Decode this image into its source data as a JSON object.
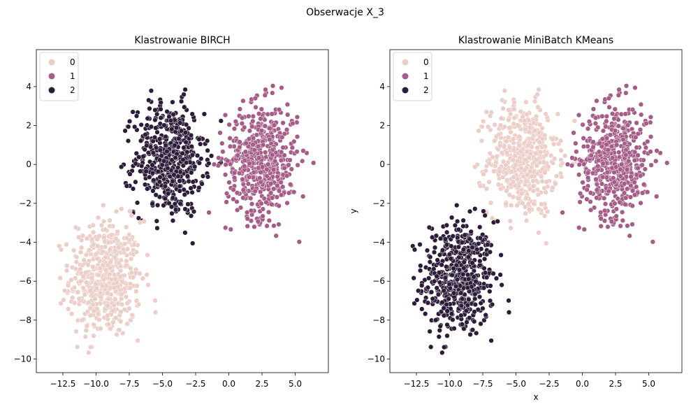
{
  "chart_data": {
    "suptitle": "Obserwacje X_3",
    "xlabel": "x",
    "ylabel": "y",
    "xlim": [
      -14.5,
      7.5
    ],
    "ylim": [
      -10.7,
      5.9
    ],
    "xticks": [
      -12.5,
      -10.0,
      -7.5,
      -5.0,
      -2.5,
      0.0,
      2.5,
      5.0
    ],
    "xtick_labels": [
      "−12.5",
      "−10.0",
      "−7.5",
      "−5.0",
      "−2.5",
      "0.0",
      "2.5",
      "5.0"
    ],
    "yticks": [
      4,
      2,
      0,
      -2,
      -4,
      -6,
      -8,
      -10
    ],
    "ytick_labels": [
      "4",
      "2",
      "0",
      "−2",
      "−4",
      "−6",
      "−8",
      "−10"
    ],
    "palette": [
      "#ebcec7",
      "#a55d88",
      "#2c1c38"
    ],
    "legend": {
      "labels": [
        "0",
        "1",
        "2"
      ],
      "loc": "upper left"
    },
    "source_blobs": [
      {
        "name": "lower-left",
        "center": [
          -9.3,
          -5.9
        ],
        "spread": [
          1.35,
          1.5
        ],
        "x_range": [
          -13.8,
          -5.4
        ],
        "y_range": [
          -10.0,
          -1.1
        ]
      },
      {
        "name": "upper-middle",
        "center": [
          -4.5,
          0.3
        ],
        "spread": [
          1.3,
          1.45
        ],
        "x_range": [
          -8.5,
          -0.2
        ],
        "y_range": [
          -4.3,
          4.8
        ]
      },
      {
        "name": "right",
        "center": [
          2.5,
          0.2
        ],
        "spread": [
          1.35,
          1.45
        ],
        "x_range": [
          -1.8,
          6.7
        ],
        "y_range": [
          -4.3,
          5.2
        ]
      }
    ],
    "panels": [
      {
        "title": "Klastrowanie BIRCH",
        "type": "scatter",
        "cluster_of_blob": [
          0,
          2,
          1
        ],
        "show_xlabel": false,
        "show_ylabel": false
      },
      {
        "title": "Klastrowanie MiniBatch KMeans",
        "type": "scatter",
        "cluster_of_blob": [
          2,
          0,
          1
        ],
        "show_xlabel": true,
        "show_ylabel": true
      }
    ]
  }
}
